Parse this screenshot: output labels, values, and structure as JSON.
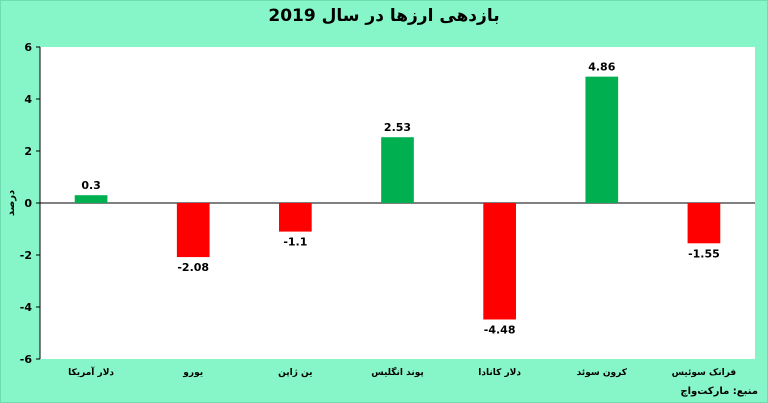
{
  "chart_data": {
    "type": "bar",
    "title": "بازدهی ارزها در سال 2019",
    "ylabel": "درصد",
    "xlabel": "",
    "ylim": [
      -6,
      6
    ],
    "yticks": [
      -6,
      -4,
      -2,
      0,
      2,
      4,
      6
    ],
    "categories": [
      "دلار آمریکا",
      "یورو",
      "ین ژاپن",
      "پوند انگلیس",
      "دلار کانادا",
      "کرون سوئد",
      "فرانک سوئیس"
    ],
    "values": [
      0.3,
      -2.08,
      -1.1,
      2.53,
      -4.48,
      4.86,
      -1.55
    ],
    "data_labels": [
      "0.3",
      "-2.08",
      "-1.1",
      "2.53",
      "-4.48",
      "4.86",
      "-1.55"
    ],
    "positive_color": "#00b050",
    "negative_color": "#ff0000",
    "grid": false,
    "legend": "none"
  },
  "source": "منبع: مارکت‌واچ"
}
